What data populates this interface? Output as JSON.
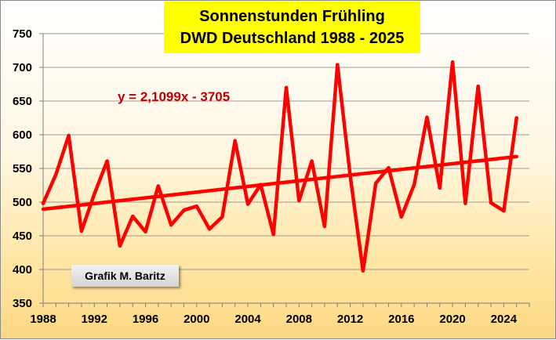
{
  "chart_data": {
    "type": "line",
    "title_line1": "Sonnenstunden Frühling",
    "title_line2": "DWD Deutschland 1988 - 2025",
    "xlabel": "",
    "ylabel": "",
    "xlim": [
      1988,
      2026
    ],
    "ylim": [
      350,
      750
    ],
    "x_ticks": [
      1988,
      1992,
      1996,
      2000,
      2004,
      2008,
      2012,
      2016,
      2020,
      2024
    ],
    "y_ticks": [
      350,
      400,
      450,
      500,
      550,
      600,
      650,
      700,
      750
    ],
    "grid": "horizontal",
    "legend": "none",
    "series": [
      {
        "color": "#ff0000",
        "x": [
          1988,
          1989,
          1990,
          1991,
          1992,
          1993,
          1994,
          1995,
          1996,
          1997,
          1998,
          1999,
          2000,
          2001,
          2002,
          2003,
          2004,
          2005,
          2006,
          2007,
          2008,
          2009,
          2010,
          2011,
          2012,
          2013,
          2014,
          2015,
          2016,
          2017,
          2018,
          2019,
          2020,
          2021,
          2022,
          2023,
          2024,
          2025
        ],
        "values": [
          498,
          541,
          599,
          457,
          512,
          561,
          435,
          479,
          456,
          524,
          466,
          488,
          494,
          460,
          478,
          591,
          497,
          526,
          452,
          670,
          502,
          561,
          464,
          704,
          539,
          398,
          528,
          551,
          478,
          526,
          626,
          521,
          708,
          498,
          672,
          499,
          487,
          625
        ]
      }
    ],
    "trendline": {
      "equation": "y = 2,1099x - 3705",
      "slope": 2.1099,
      "intercept": -3705,
      "color": "#ff0000"
    },
    "annotation": "Grafik M. Baritz"
  }
}
